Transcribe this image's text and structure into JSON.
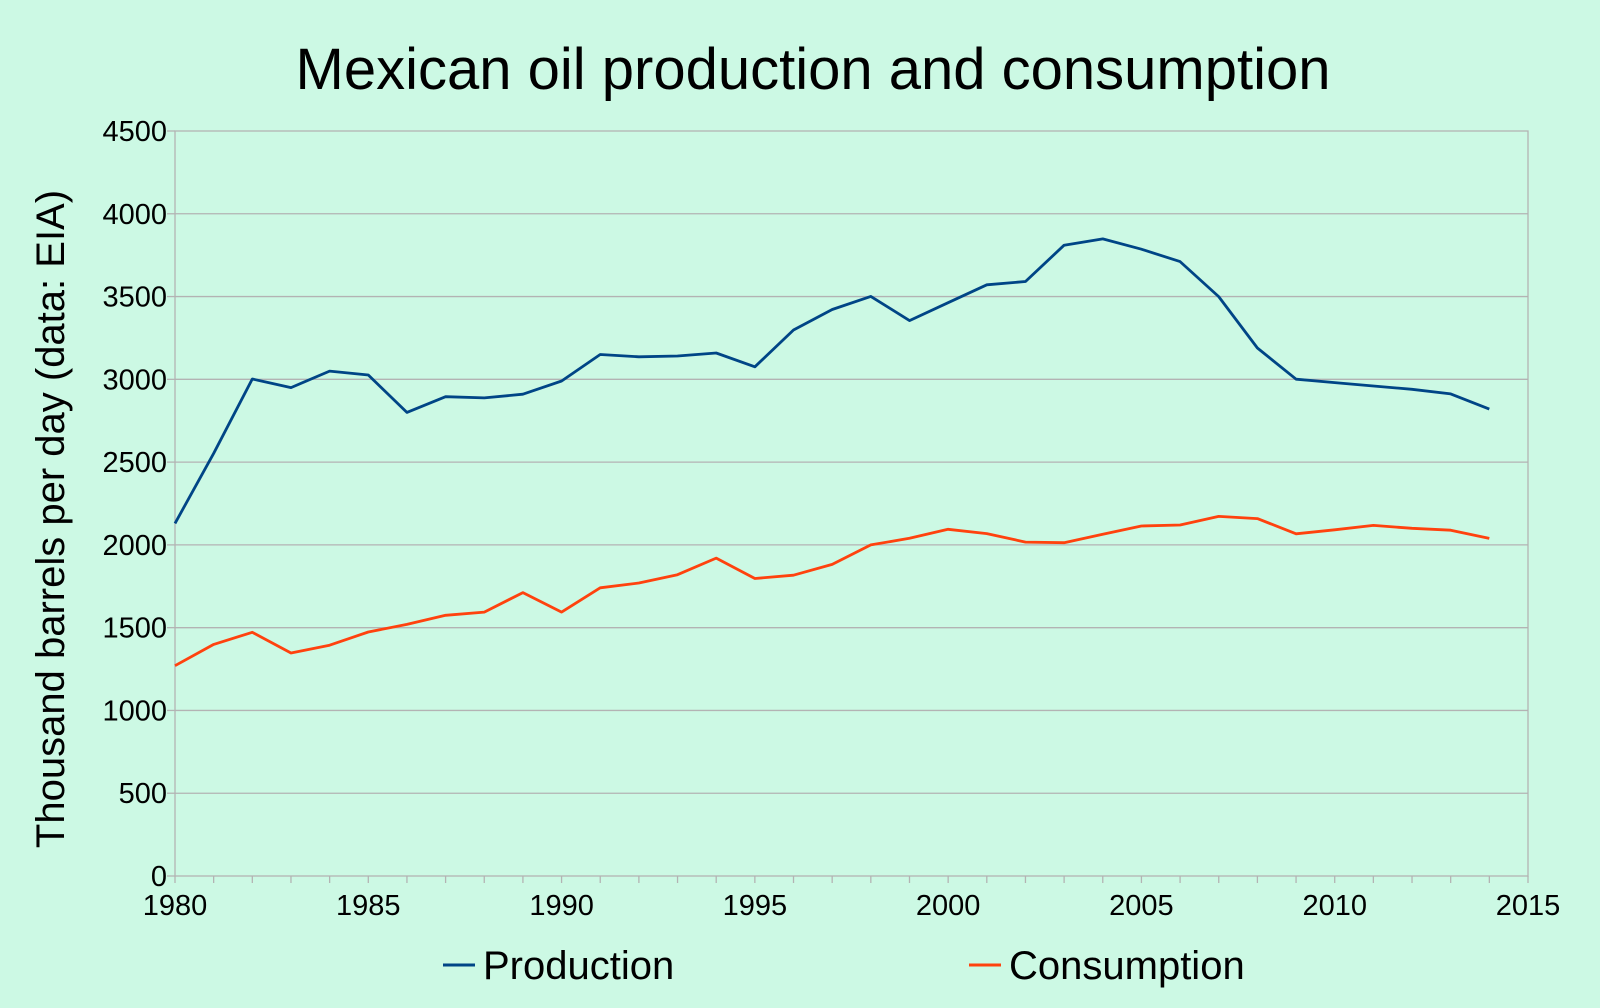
{
  "chart_data": {
    "type": "line",
    "title": "Mexican oil production and consumption",
    "xlabel": "",
    "ylabel": "Thousand barrels per day (data: EIA)",
    "xlim": [
      1980,
      2015
    ],
    "ylim": [
      0,
      4500
    ],
    "x_ticks": [
      "1980",
      "1985",
      "1990",
      "1995",
      "2000",
      "2005",
      "2010",
      "2015"
    ],
    "y_ticks": [
      "0",
      "500",
      "1000",
      "1500",
      "2000",
      "2500",
      "3000",
      "3500",
      "4000",
      "4500"
    ],
    "x_tick_values": [
      1980,
      1985,
      1990,
      1995,
      2000,
      2005,
      2010,
      2015
    ],
    "y_tick_values": [
      0,
      500,
      1000,
      1500,
      2000,
      2500,
      3000,
      3500,
      4000,
      4500
    ],
    "grid": true,
    "legend": "bottom",
    "x": [
      1980,
      1981,
      1982,
      1983,
      1984,
      1985,
      1986,
      1987,
      1988,
      1989,
      1990,
      1991,
      1992,
      1993,
      1994,
      1995,
      1996,
      1997,
      1998,
      1999,
      2000,
      2001,
      2002,
      2003,
      2004,
      2005,
      2006,
      2007,
      2008,
      2009,
      2010,
      2011,
      2012,
      2013,
      2014
    ],
    "series": [
      {
        "name": "Production",
        "color": "#004586",
        "values": [
          2130,
          2553,
          3002,
          2950,
          3050,
          3026,
          2800,
          2895,
          2888,
          2910,
          2990,
          3150,
          3136,
          3141,
          3159,
          3076,
          3298,
          3422,
          3501,
          3355,
          3463,
          3571,
          3591,
          3810,
          3848,
          3786,
          3711,
          3500,
          3189,
          3001,
          2980,
          2960,
          2940,
          2912,
          2820
        ]
      },
      {
        "name": "Consumption",
        "color": "#ff420e",
        "values": [
          1270,
          1399,
          1472,
          1347,
          1394,
          1474,
          1520,
          1575,
          1594,
          1712,
          1594,
          1741,
          1770,
          1820,
          1920,
          1797,
          1817,
          1882,
          2000,
          2040,
          2094,
          2068,
          2017,
          2013,
          2064,
          2114,
          2120,
          2172,
          2159,
          2067,
          2091,
          2118,
          2100,
          2089,
          2039
        ]
      }
    ]
  }
}
